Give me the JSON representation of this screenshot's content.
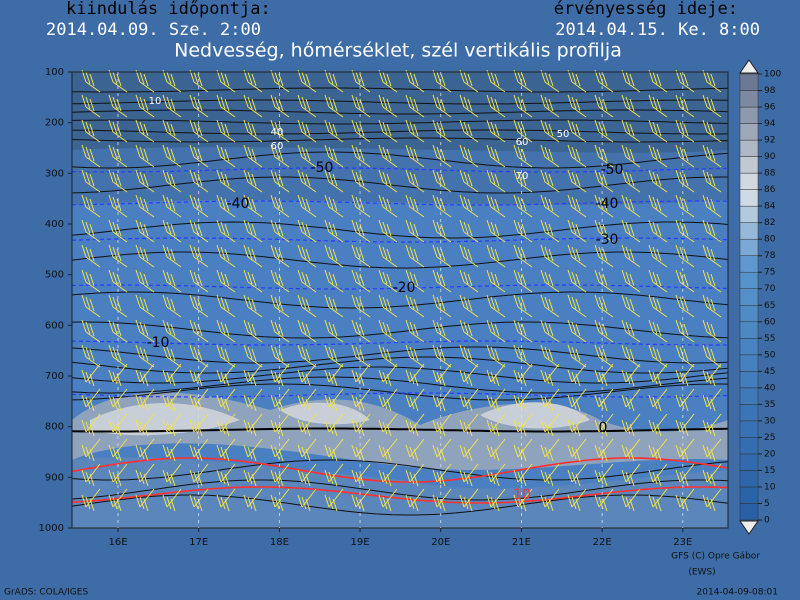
{
  "chart_data": {
    "type": "contour",
    "header": {
      "start_label": "kiindulás időpontja:",
      "start_time": "2014.04.09. Sze. 2:00",
      "valid_label": "érvényesség ideje:",
      "valid_time": "2014.04.15. Ke. 8:00"
    },
    "title": "Nedvesség, hőmérséklet, szél vertikális profilja",
    "xlim": [
      15.43,
      23.56
    ],
    "xticks": [
      {
        "value": 16,
        "label": "16E"
      },
      {
        "value": 17,
        "label": "17E"
      },
      {
        "value": 18,
        "label": "18E"
      },
      {
        "value": 19,
        "label": "19E"
      },
      {
        "value": 20,
        "label": "20E"
      },
      {
        "value": 21,
        "label": "21E"
      },
      {
        "value": 22,
        "label": "22E"
      },
      {
        "value": 23,
        "label": "23E"
      }
    ],
    "ylim": [
      1000,
      100
    ],
    "yticks": [
      100,
      200,
      300,
      400,
      500,
      600,
      700,
      800,
      900,
      1000
    ],
    "grid": true,
    "colorbar_ticks": [
      0,
      5,
      10,
      15,
      20,
      25,
      30,
      35,
      40,
      45,
      50,
      55,
      60,
      65,
      70,
      75,
      78,
      80,
      82,
      84,
      86,
      88,
      90,
      92,
      94,
      96,
      98,
      100
    ],
    "temperature_labels": [
      -50,
      -50,
      -40,
      -40,
      -30,
      -20,
      -10,
      0,
      10
    ],
    "humidity_labels": [
      10,
      40,
      60,
      60,
      50,
      70
    ],
    "credit": "GFS (C) Opre Gábor",
    "credit_sub": "(EWS)",
    "software": "GrADS: COLA/IGES",
    "timestamp": "2014-04-09-08:01"
  }
}
